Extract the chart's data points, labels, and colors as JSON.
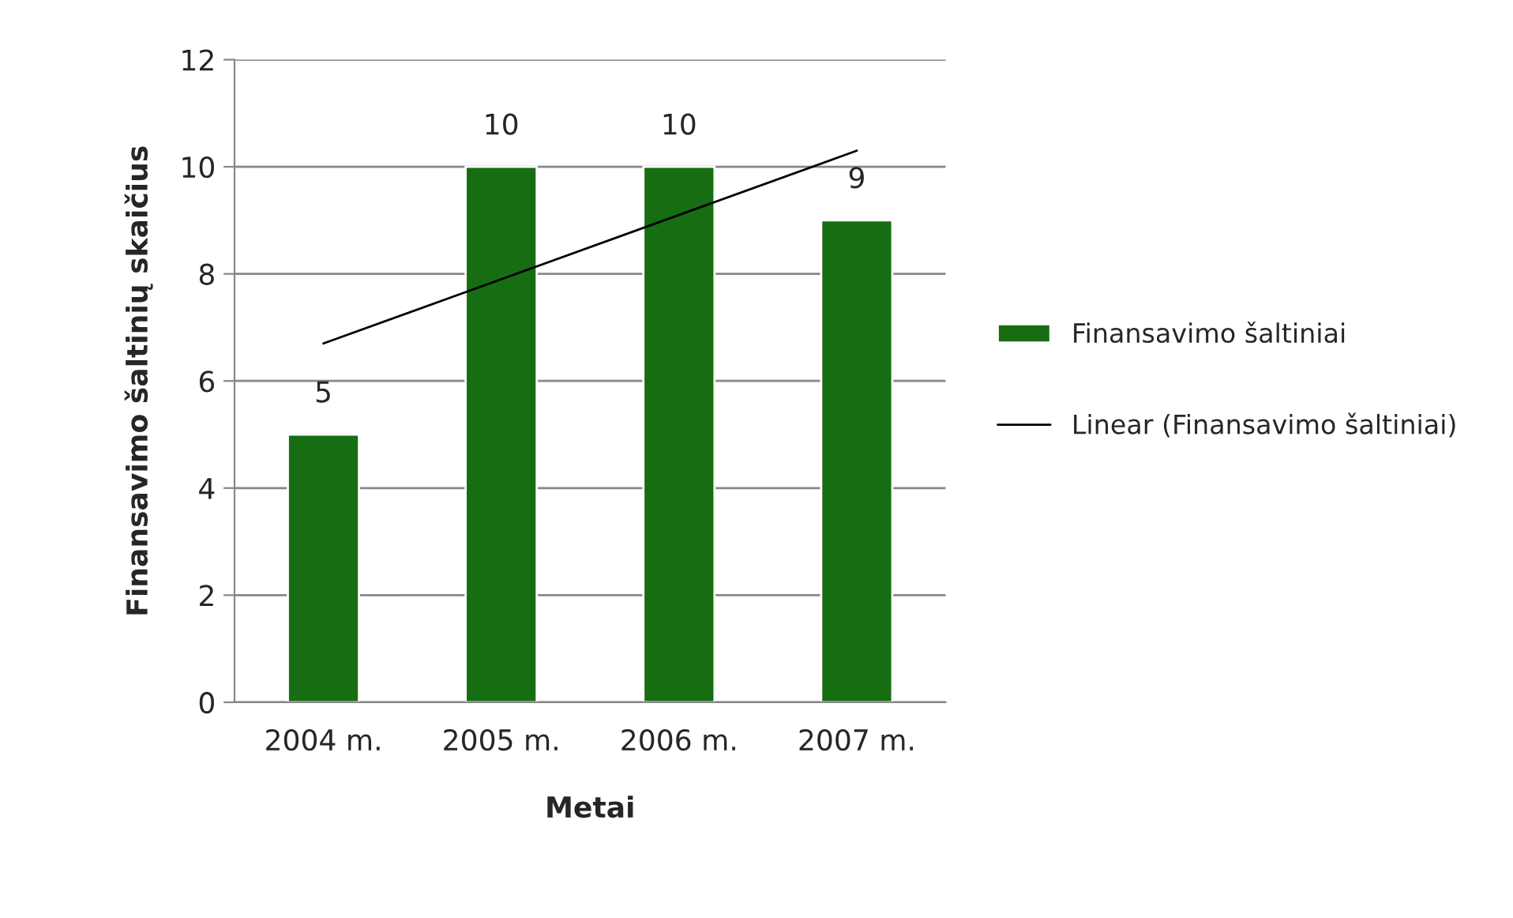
{
  "chart_data": {
    "type": "bar",
    "xlabel": "Metai",
    "ylabel": "Finansavimo šaltinių skaičius",
    "categories": [
      "2004 m.",
      "2005 m.",
      "2006 m.",
      "2007 m."
    ],
    "series": [
      {
        "name": "Finansavimo šaltiniai",
        "color": "#176d12",
        "values": [
          5,
          10,
          10,
          9
        ],
        "data_labels": true
      },
      {
        "name": "Linear (Finansavimo šaltiniai)",
        "type": "line",
        "color": "#000000",
        "values": [
          6.7,
          7.9,
          9.1,
          10.3
        ]
      }
    ],
    "ylim": [
      0,
      12
    ],
    "yticks": [
      0,
      2,
      4,
      6,
      8,
      10,
      12
    ],
    "grid": "y",
    "legend": "right"
  }
}
